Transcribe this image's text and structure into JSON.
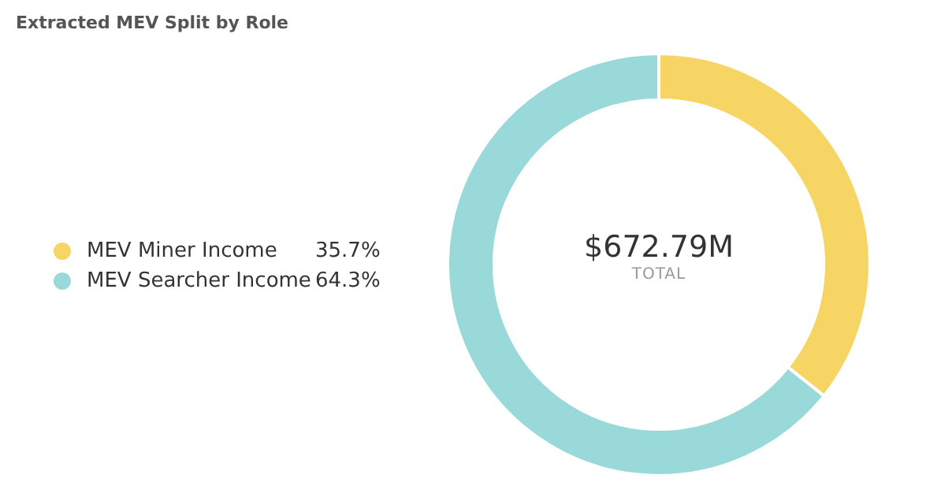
{
  "chart_data": {
    "type": "donut",
    "title": "Extracted MEV Split by Role",
    "categories": [
      "MEV Miner Income",
      "MEV Searcher Income"
    ],
    "values": [
      35.7,
      64.3
    ],
    "value_labels": [
      "35.7%",
      "64.3%"
    ],
    "colors": [
      "#f7d564",
      "#9ad9d9"
    ],
    "legend": "left",
    "annotations": [
      "$672.79M",
      "TOTAL"
    ]
  }
}
